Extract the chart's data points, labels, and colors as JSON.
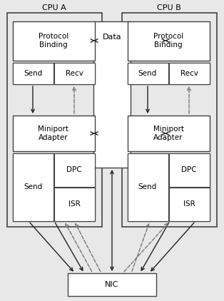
{
  "fig_width": 3.14,
  "fig_height": 4.22,
  "dpi": 100,
  "bg_color": "#e8e8e8",
  "box_face": "#ffffff",
  "cpu_face": "#e8e8e8",
  "edge_color": "#444444",
  "text_color": "#000000",
  "cpu_a_label": "CPU A",
  "cpu_b_label": "CPU B",
  "data_label": "Data",
  "nic_label": "NIC",
  "proto_label": "Protocol\nBinding",
  "miniport_label": "Miniport\nAdapter",
  "send_label": "Send",
  "recv_label": "Recv",
  "dpc_label": "DPC",
  "isr_label": "ISR",
  "arrow_color": "#222222",
  "dashed_color": "#777777"
}
